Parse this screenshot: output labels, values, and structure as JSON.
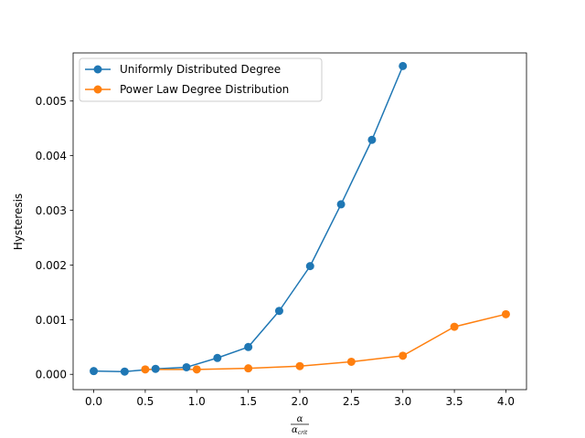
{
  "chart_data": {
    "type": "line",
    "xlabel": {
      "numerator": "α",
      "denominator": "α",
      "denominator_subscript": "crit"
    },
    "ylabel": "Hysteresis",
    "xlim": [
      -0.2,
      4.2
    ],
    "ylim": [
      -0.00028,
      0.00588
    ],
    "xticks": [
      0.0,
      0.5,
      1.0,
      1.5,
      2.0,
      2.5,
      3.0,
      3.5,
      4.0
    ],
    "xtick_labels": [
      "0.0",
      "0.5",
      "1.0",
      "1.5",
      "2.0",
      "2.5",
      "3.0",
      "3.5",
      "4.0"
    ],
    "yticks": [
      0.0,
      0.001,
      0.002,
      0.003,
      0.004,
      0.005
    ],
    "ytick_labels": [
      "0.000",
      "0.001",
      "0.002",
      "0.003",
      "0.004",
      "0.005"
    ],
    "grid": false,
    "legend_position": "upper-left",
    "series": [
      {
        "name": "Uniformly Distributed Degree",
        "color": "#1f77b4",
        "marker": "circle",
        "x": [
          0.0,
          0.3,
          0.6,
          0.9,
          1.2,
          1.5,
          1.8,
          2.1,
          2.4,
          2.7,
          3.0
        ],
        "y": [
          6e-05,
          5e-05,
          0.0001,
          0.00013,
          0.0003,
          0.0005,
          0.00116,
          0.00198,
          0.00311,
          0.00429,
          0.00564
        ]
      },
      {
        "name": "Power Law Degree Distribution",
        "color": "#ff7f0e",
        "marker": "circle",
        "x": [
          0.5,
          1.0,
          1.5,
          2.0,
          2.5,
          3.0,
          3.5,
          4.0
        ],
        "y": [
          9e-05,
          9e-05,
          0.00011,
          0.00015,
          0.00023,
          0.00034,
          0.00087,
          0.0011
        ]
      }
    ]
  }
}
